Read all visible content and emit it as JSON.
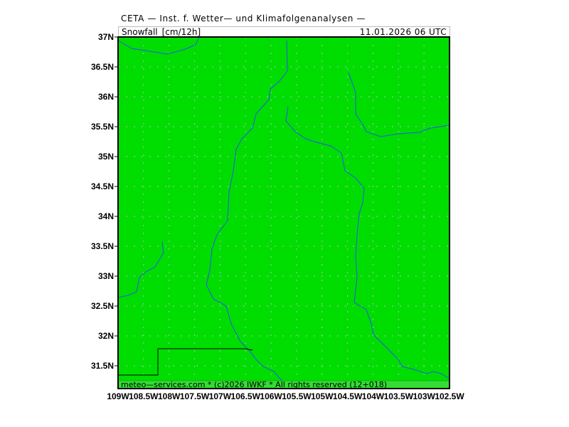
{
  "header": {
    "title": "CETA — Inst. f. Wetter— und Klimafolgenanalysen —",
    "parameter": "Snowfall_[cm/12h]",
    "valid_time": "11.01.2026 06 UTC"
  },
  "map": {
    "fill_color": "#00dd00",
    "river_color": "#2255ee",
    "border_color": "#000000",
    "lat_labels": [
      "37N",
      "36.5N",
      "36N",
      "35.5N",
      "35N",
      "34.5N",
      "34N",
      "33.5N",
      "33N",
      "32.5N",
      "32N",
      "31.5N"
    ],
    "lon_labels": [
      "109W",
      "108.5W",
      "108W",
      "107.5W",
      "107W",
      "106.5W",
      "106W",
      "105.5W",
      "105W",
      "104.5W",
      "104W",
      "103.5W",
      "103W",
      "102.5W"
    ]
  },
  "footer": {
    "text": "meteo—services.com * (c)2026 IWKF * All rights reserved (12+018)"
  }
}
